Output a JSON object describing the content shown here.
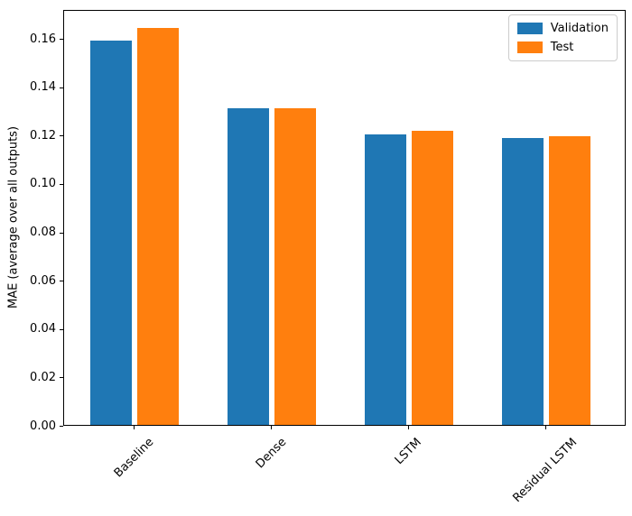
{
  "figure": {
    "background": "#ffffff",
    "axes_color": "#000000",
    "text_color": "#000000"
  },
  "chart_data": {
    "type": "bar",
    "title": "",
    "xlabel": "",
    "ylabel": "MAE (average over all outputs)",
    "categories": [
      "Baseline",
      "Dense",
      "LSTM",
      "Residual LSTM"
    ],
    "series": [
      {
        "name": "Validation",
        "color": "#1f77b4",
        "values": [
          0.159,
          0.131,
          0.1203,
          0.1185
        ]
      },
      {
        "name": "Test",
        "color": "#ff7f0e",
        "values": [
          0.164,
          0.131,
          0.1215,
          0.1195
        ]
      }
    ],
    "ylim": [
      0,
      0.172
    ],
    "yticks": [
      0.0,
      0.02,
      0.04,
      0.06,
      0.08,
      0.1,
      0.12,
      0.14,
      0.16
    ],
    "ytick_labels": [
      "0.00",
      "0.02",
      "0.04",
      "0.06",
      "0.08",
      "0.10",
      "0.12",
      "0.14",
      "0.16"
    ],
    "xtick_rotation": 45,
    "grid": false,
    "legend": {
      "position": "upper right",
      "entries": [
        "Validation",
        "Test"
      ]
    }
  }
}
